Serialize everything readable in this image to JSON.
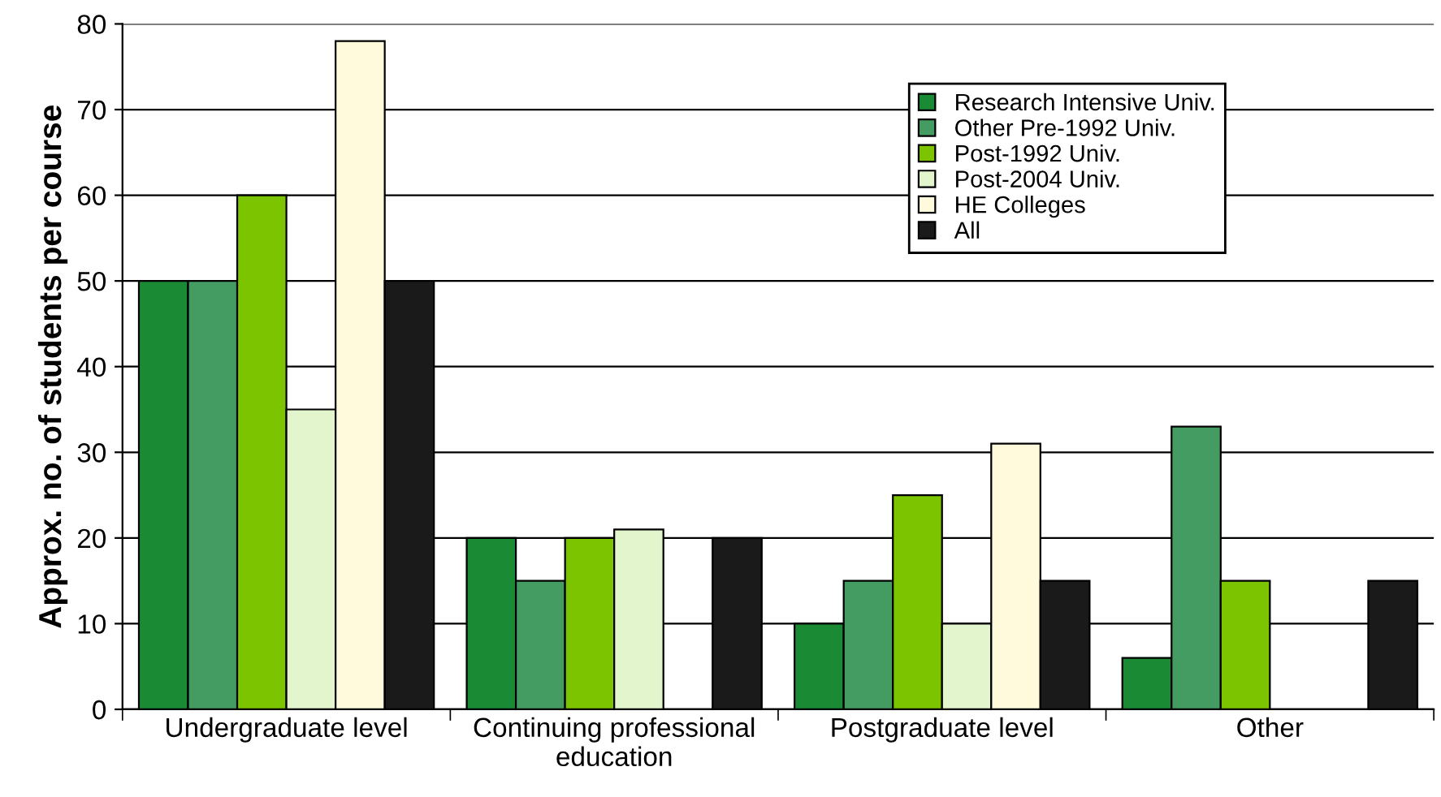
{
  "chart_data": {
    "type": "bar",
    "ylabel": "Approx. no. of students per course",
    "categories": [
      "Undergraduate level",
      "Continuing professional\neducation",
      "Postgraduate level",
      "Other"
    ],
    "series": [
      {
        "name": "Research Intensive Univ.",
        "color": "#1a8a35",
        "values": [
          50,
          20,
          10,
          6
        ]
      },
      {
        "name": "Other Pre-1992 Univ.",
        "color": "#459c62",
        "values": [
          50,
          15,
          15,
          33
        ]
      },
      {
        "name": "Post-1992 Univ.",
        "color": "#7dc400",
        "values": [
          60,
          20,
          25,
          15
        ]
      },
      {
        "name": "Post-2004 Univ.",
        "color": "#e3f5cc",
        "values": [
          35,
          21,
          10,
          null
        ]
      },
      {
        "name": "HE Colleges",
        "color": "#fefadb",
        "values": [
          78,
          null,
          31,
          null
        ]
      },
      {
        "name": "All",
        "color": "#1a1a1a",
        "values": [
          50,
          20,
          15,
          15
        ]
      }
    ],
    "ylim": [
      0,
      80
    ],
    "yticks": [
      0,
      10,
      20,
      30,
      40,
      50,
      60,
      70,
      80
    ],
    "grid": "y",
    "legend": "top right"
  }
}
